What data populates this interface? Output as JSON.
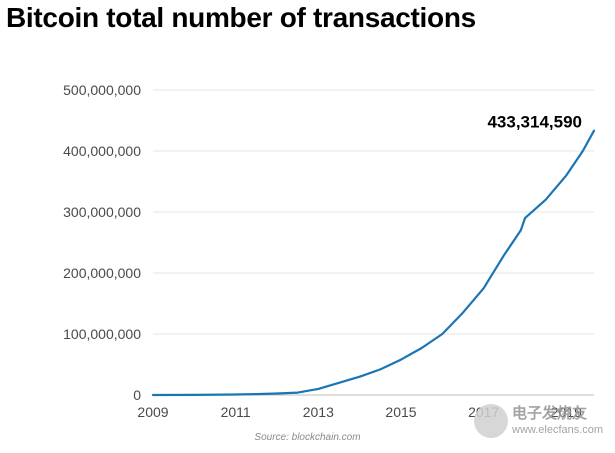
{
  "chart_data": {
    "type": "line",
    "title": "Bitcoin total number of transactions",
    "xlabel": "",
    "ylabel": "",
    "xlim": [
      2009,
      2019.67
    ],
    "ylim": [
      0,
      500000000
    ],
    "x_ticks": [
      2009,
      2011,
      2013,
      2015,
      2017,
      2019
    ],
    "y_ticks": [
      0,
      100000000,
      200000000,
      300000000,
      400000000,
      500000000
    ],
    "grid": true,
    "line_color": "#1a75b5",
    "series": [
      {
        "x": [
          2009,
          2010,
          2011,
          2011.5,
          2012,
          2012.5,
          2013,
          2013.5,
          2014,
          2014.5,
          2015,
          2015.5,
          2016,
          2016.5,
          2017,
          2017.5,
          2017.9,
          2018,
          2018.5,
          2019,
          2019.4,
          2019.67
        ],
        "values": [
          0,
          100000,
          800000,
          1500000,
          2500000,
          4000000,
          10000000,
          20000000,
          30000000,
          42000000,
          58000000,
          77000000,
          100000000,
          135000000,
          175000000,
          230000000,
          270000000,
          290000000,
          320000000,
          360000000,
          400000000,
          433314590
        ]
      }
    ],
    "annotations": [
      {
        "text": "433,314,590",
        "x": 2019.67,
        "y": 433314590
      }
    ],
    "source": "Source: blockchain.com"
  },
  "watermark": {
    "line1": "电子发烧友",
    "line2": "www.elecfans.com"
  }
}
